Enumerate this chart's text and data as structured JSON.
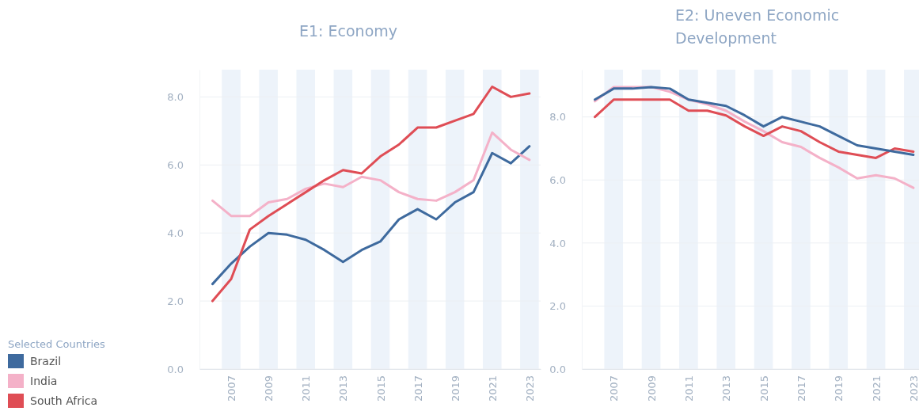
{
  "chart_data": [
    {
      "type": "line",
      "title": "E1: Economy",
      "x": [
        2006,
        2007,
        2008,
        2009,
        2010,
        2011,
        2012,
        2013,
        2014,
        2015,
        2016,
        2017,
        2018,
        2019,
        2020,
        2021,
        2022,
        2023
      ],
      "series": [
        {
          "name": "Brazil",
          "color": "#3e6a9e",
          "values": [
            2.5,
            3.1,
            3.6,
            4.0,
            3.95,
            3.8,
            3.5,
            3.15,
            3.5,
            3.75,
            4.4,
            4.7,
            4.4,
            4.9,
            5.2,
            6.35,
            6.05,
            6.55
          ]
        },
        {
          "name": "India",
          "color": "#f4b1c8",
          "values": [
            4.95,
            4.5,
            4.5,
            4.9,
            5.0,
            5.3,
            5.45,
            5.35,
            5.65,
            5.55,
            5.2,
            5.0,
            4.95,
            5.2,
            5.55,
            6.95,
            6.45,
            6.15
          ]
        },
        {
          "name": "South Africa",
          "color": "#df4d55",
          "values": [
            2.0,
            2.65,
            4.1,
            4.5,
            4.85,
            5.2,
            5.55,
            5.85,
            5.75,
            6.25,
            6.6,
            7.1,
            7.1,
            7.3,
            7.5,
            8.3,
            8.0,
            8.1
          ]
        }
      ],
      "xlim": [
        2005.3,
        2023.6
      ],
      "xticks": [
        2007,
        2009,
        2011,
        2013,
        2015,
        2017,
        2019,
        2021,
        2023
      ],
      "ylim": [
        0,
        8.8
      ],
      "yticks": [
        {
          "value": 0,
          "label": "0.0"
        },
        {
          "value": 2,
          "label": "2.0"
        },
        {
          "value": 4,
          "label": "4.0"
        },
        {
          "value": 6,
          "label": "6.0"
        },
        {
          "value": 8,
          "label": "8.0"
        }
      ],
      "grid": "y",
      "legend": "bottom left",
      "legend_title": "Selected Countries",
      "bands": [
        {
          "axis": "x",
          "from": 2006.5,
          "to": 2007.5,
          "color": "#edf3fa"
        },
        {
          "axis": "x",
          "from": 2008.5,
          "to": 2009.5,
          "color": "#edf3fa"
        },
        {
          "axis": "x",
          "from": 2010.5,
          "to": 2011.5,
          "color": "#edf3fa"
        },
        {
          "axis": "x",
          "from": 2012.5,
          "to": 2013.5,
          "color": "#edf3fa"
        },
        {
          "axis": "x",
          "from": 2014.5,
          "to": 2015.5,
          "color": "#edf3fa"
        },
        {
          "axis": "x",
          "from": 2016.5,
          "to": 2017.5,
          "color": "#edf3fa"
        },
        {
          "axis": "x",
          "from": 2018.5,
          "to": 2019.5,
          "color": "#edf3fa"
        },
        {
          "axis": "x",
          "from": 2020.5,
          "to": 2021.5,
          "color": "#edf3fa"
        },
        {
          "axis": "x",
          "from": 2022.5,
          "to": 2023.5,
          "color": "#edf3fa"
        }
      ]
    },
    {
      "type": "line",
      "title": "E2: Uneven Economic Development",
      "x": [
        2006,
        2007,
        2008,
        2009,
        2010,
        2011,
        2012,
        2013,
        2014,
        2015,
        2016,
        2017,
        2018,
        2019,
        2020,
        2021,
        2022,
        2023
      ],
      "series": [
        {
          "color": "#f4b1c8",
          "values": [
            8.5,
            8.95,
            8.95,
            8.95,
            8.8,
            8.55,
            8.4,
            8.2,
            7.85,
            7.55,
            7.2,
            7.05,
            6.7,
            6.4,
            6.05,
            6.15,
            6.05,
            5.75
          ]
        },
        {
          "color": "#df4d55",
          "values": [
            8.0,
            8.55,
            8.55,
            8.55,
            8.55,
            8.2,
            8.2,
            8.05,
            7.7,
            7.4,
            7.7,
            7.55,
            7.2,
            6.9,
            6.8,
            6.7,
            7.0,
            6.9
          ]
        },
        {
          "color": "#3e6a9e",
          "values": [
            8.55,
            8.9,
            8.9,
            8.95,
            8.9,
            8.55,
            8.45,
            8.35,
            8.05,
            7.7,
            8.0,
            7.85,
            7.7,
            7.4,
            7.1,
            7.0,
            6.9,
            6.8
          ]
        }
      ],
      "xlim": [
        2005.3,
        2023.3
      ],
      "xticks": [
        2007,
        2009,
        2011,
        2013,
        2015,
        2017,
        2019,
        2021,
        2023
      ],
      "ylim": [
        0,
        9.5
      ],
      "yticks": [
        {
          "value": 0,
          "label": "0.0"
        },
        {
          "value": 2,
          "label": "2.0"
        },
        {
          "value": 4,
          "label": "4.0"
        },
        {
          "value": 6,
          "label": "6.0"
        },
        {
          "value": 8,
          "label": "8.0"
        }
      ],
      "grid": "y",
      "bands": [
        {
          "axis": "x",
          "from": 2006.5,
          "to": 2007.5,
          "color": "#edf3fa"
        },
        {
          "axis": "x",
          "from": 2008.5,
          "to": 2009.5,
          "color": "#edf3fa"
        },
        {
          "axis": "x",
          "from": 2010.5,
          "to": 2011.5,
          "color": "#edf3fa"
        },
        {
          "axis": "x",
          "from": 2012.5,
          "to": 2013.5,
          "color": "#edf3fa"
        },
        {
          "axis": "x",
          "from": 2014.5,
          "to": 2015.5,
          "color": "#edf3fa"
        },
        {
          "axis": "x",
          "from": 2016.5,
          "to": 2017.5,
          "color": "#edf3fa"
        },
        {
          "axis": "x",
          "from": 2018.5,
          "to": 2019.5,
          "color": "#edf3fa"
        },
        {
          "axis": "x",
          "from": 2020.5,
          "to": 2021.5,
          "color": "#edf3fa"
        },
        {
          "axis": "x",
          "from": 2022.5,
          "to": 2023.5,
          "color": "#edf3fa"
        }
      ]
    }
  ]
}
